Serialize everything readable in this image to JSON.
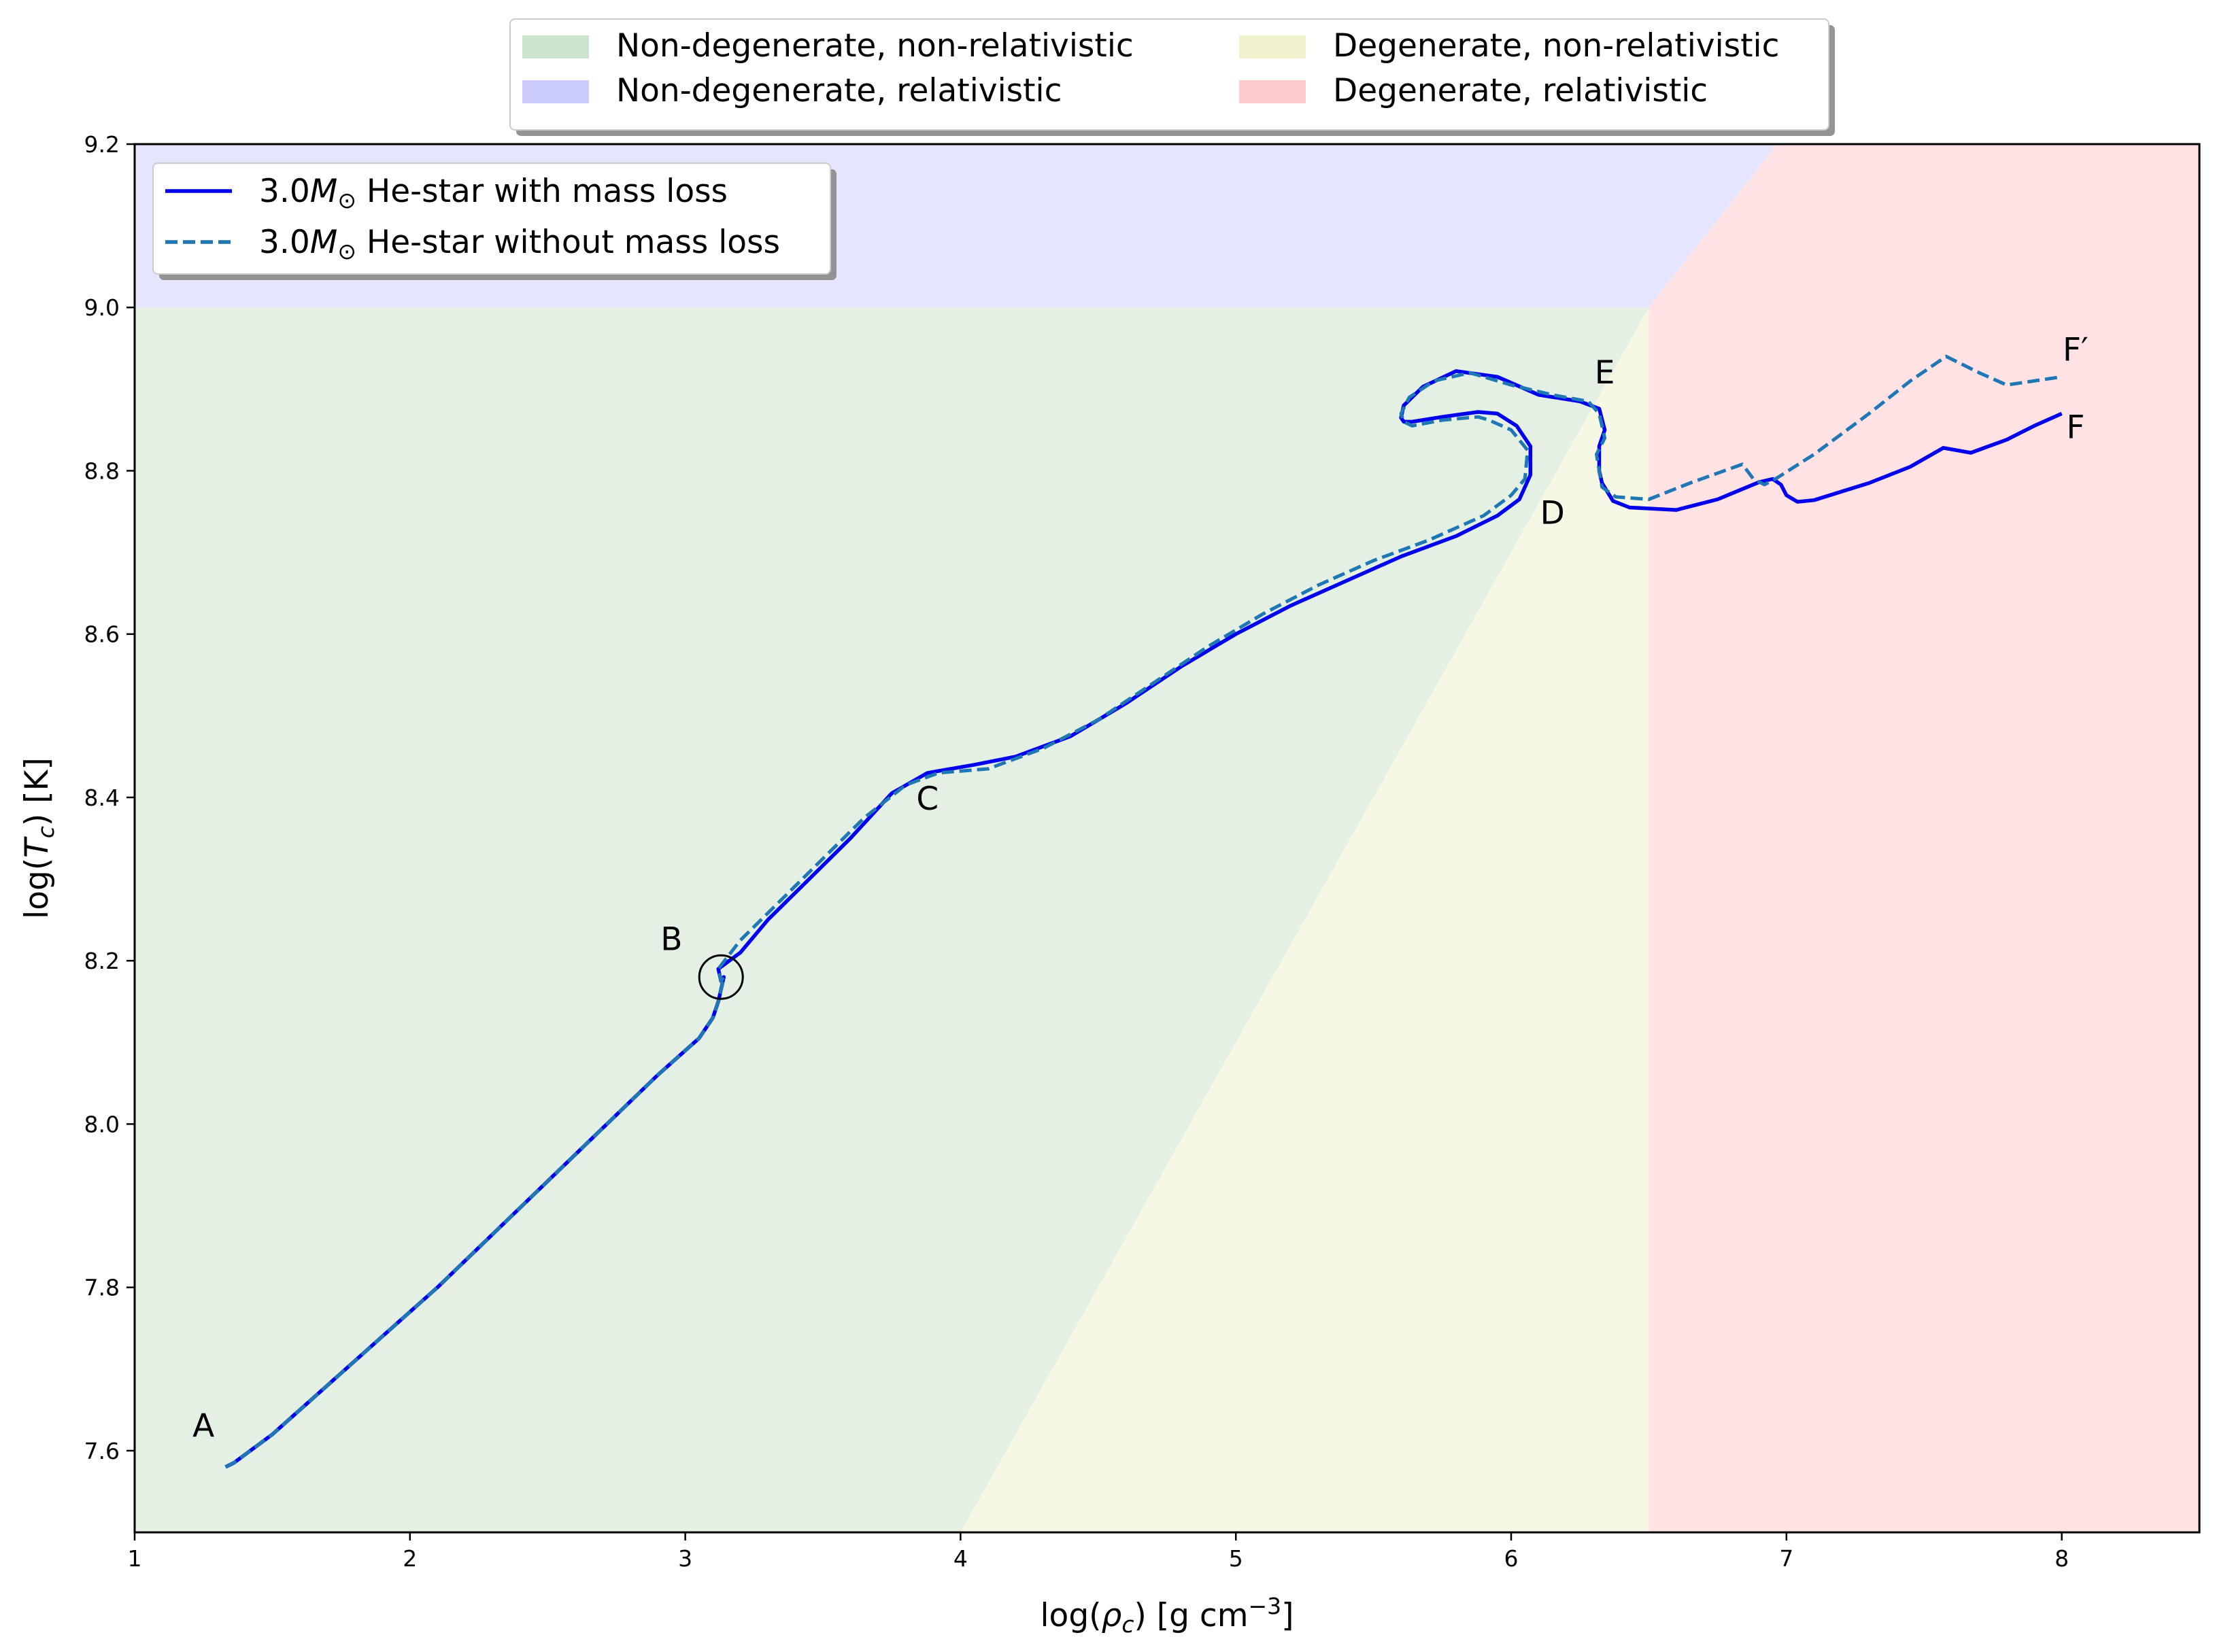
{
  "chart_data": {
    "type": "line",
    "xlabel": "log(ρc) [g cm−3]",
    "ylabel": "log(Tc) [K]",
    "xlim": [
      1,
      8.5
    ],
    "ylim": [
      7.5,
      9.2
    ],
    "x_ticks": [
      "1",
      "2",
      "3",
      "4",
      "5",
      "6",
      "7",
      "8"
    ],
    "y_ticks": [
      "7.6",
      "7.8",
      "8.0",
      "8.2",
      "8.4",
      "8.6",
      "8.8",
      "9.0",
      "9.2"
    ],
    "grid": false,
    "regions": [
      {
        "name": "Non-degenerate, non-relativistic",
        "color": "#e5f0e5",
        "legend_color": "#cde4cd",
        "polygon": [
          [
            1,
            7.5
          ],
          [
            4,
            7.5
          ],
          [
            6.5,
            9.0
          ],
          [
            1,
            9.0
          ]
        ]
      },
      {
        "name": "Non-degenerate, relativistic",
        "color": "#e5e5ff",
        "legend_color": "#cbcbfc",
        "polygon": [
          [
            1,
            9.0
          ],
          [
            6.5,
            9.0
          ],
          [
            6.9667,
            9.2
          ],
          [
            1,
            9.2
          ]
        ]
      },
      {
        "name": "Degenerate, non-relativistic",
        "color": "#f7f7e5",
        "legend_color": "#f1f1cd",
        "polygon": [
          [
            4,
            7.5
          ],
          [
            6.5,
            7.5
          ],
          [
            6.5,
            9.0
          ]
        ]
      },
      {
        "name": "Degenerate, relativistic",
        "color": "#ffe2e3",
        "legend_color": "#fdcbcc",
        "polygon": [
          [
            6.5,
            7.5
          ],
          [
            8.5,
            7.5
          ],
          [
            8.5,
            9.2
          ],
          [
            6.9667,
            9.2
          ],
          [
            6.5,
            9.0
          ]
        ]
      }
    ],
    "series": [
      {
        "name": "3.0M⊙ He-star with mass loss",
        "name_parts": {
          "prefix": "3.0",
          "symbol": "M",
          "subscript": "⊙",
          "suffix": " He-star with mass loss"
        },
        "color": "#0000ee",
        "style": "solid",
        "points": [
          [
            1.33,
            7.58
          ],
          [
            1.36,
            7.585
          ],
          [
            1.5,
            7.62
          ],
          [
            1.7,
            7.68
          ],
          [
            1.9,
            7.74
          ],
          [
            2.1,
            7.8
          ],
          [
            2.3,
            7.865
          ],
          [
            2.5,
            7.93
          ],
          [
            2.7,
            7.995
          ],
          [
            2.9,
            8.06
          ],
          [
            3.05,
            8.105
          ],
          [
            3.1,
            8.13
          ],
          [
            3.12,
            8.15
          ],
          [
            3.14,
            8.18
          ],
          [
            3.13,
            8.175
          ],
          [
            3.12,
            8.19
          ],
          [
            3.2,
            8.21
          ],
          [
            3.3,
            8.25
          ],
          [
            3.45,
            8.3
          ],
          [
            3.6,
            8.35
          ],
          [
            3.75,
            8.405
          ],
          [
            3.88,
            8.43
          ],
          [
            4.05,
            8.44
          ],
          [
            4.2,
            8.45
          ],
          [
            4.4,
            8.475
          ],
          [
            4.6,
            8.515
          ],
          [
            4.8,
            8.56
          ],
          [
            5.0,
            8.6
          ],
          [
            5.2,
            8.635
          ],
          [
            5.4,
            8.665
          ],
          [
            5.6,
            8.695
          ],
          [
            5.8,
            8.72
          ],
          [
            5.95,
            8.745
          ],
          [
            6.03,
            8.765
          ],
          [
            6.07,
            8.795
          ],
          [
            6.07,
            8.83
          ],
          [
            6.02,
            8.855
          ],
          [
            5.95,
            8.87
          ],
          [
            5.88,
            8.872
          ],
          [
            5.75,
            8.866
          ],
          [
            5.64,
            8.86
          ],
          [
            5.61,
            8.86
          ],
          [
            5.6,
            8.865
          ],
          [
            5.61,
            8.88
          ],
          [
            5.68,
            8.903
          ],
          [
            5.8,
            8.922
          ],
          [
            5.95,
            8.915
          ],
          [
            6.1,
            8.893
          ],
          [
            6.25,
            8.885
          ],
          [
            6.32,
            8.876
          ],
          [
            6.34,
            8.85
          ],
          [
            6.32,
            8.83
          ],
          [
            6.32,
            8.8
          ],
          [
            6.33,
            8.785
          ],
          [
            6.37,
            8.763
          ],
          [
            6.43,
            8.755
          ],
          [
            6.6,
            8.752
          ],
          [
            6.75,
            8.765
          ],
          [
            6.9,
            8.786
          ],
          [
            6.95,
            8.79
          ],
          [
            6.98,
            8.783
          ],
          [
            7.0,
            8.77
          ],
          [
            7.04,
            8.762
          ],
          [
            7.1,
            8.764
          ],
          [
            7.3,
            8.785
          ],
          [
            7.45,
            8.805
          ],
          [
            7.57,
            8.828
          ],
          [
            7.67,
            8.822
          ],
          [
            7.8,
            8.838
          ],
          [
            7.9,
            8.855
          ],
          [
            8.0,
            8.87
          ]
        ]
      },
      {
        "name": "3.0M⊙ He-star without mass loss",
        "name_parts": {
          "prefix": "3.0",
          "symbol": "M",
          "subscript": "⊙",
          "suffix": " He-star without mass loss"
        },
        "color": "#1f77b4",
        "style": "dashed",
        "points": [
          [
            1.33,
            7.58
          ],
          [
            1.36,
            7.585
          ],
          [
            1.5,
            7.62
          ],
          [
            1.7,
            7.68
          ],
          [
            1.9,
            7.74
          ],
          [
            2.1,
            7.8
          ],
          [
            2.3,
            7.865
          ],
          [
            2.5,
            7.93
          ],
          [
            2.7,
            7.995
          ],
          [
            2.9,
            8.06
          ],
          [
            3.05,
            8.105
          ],
          [
            3.1,
            8.13
          ],
          [
            3.12,
            8.15
          ],
          [
            3.14,
            8.18
          ],
          [
            3.13,
            8.175
          ],
          [
            3.12,
            8.19
          ],
          [
            3.2,
            8.225
          ],
          [
            3.35,
            8.275
          ],
          [
            3.5,
            8.325
          ],
          [
            3.65,
            8.375
          ],
          [
            3.8,
            8.415
          ],
          [
            3.92,
            8.43
          ],
          [
            4.1,
            8.435
          ],
          [
            4.3,
            8.46
          ],
          [
            4.5,
            8.495
          ],
          [
            4.7,
            8.54
          ],
          [
            4.9,
            8.585
          ],
          [
            5.1,
            8.625
          ],
          [
            5.3,
            8.66
          ],
          [
            5.5,
            8.69
          ],
          [
            5.7,
            8.715
          ],
          [
            5.9,
            8.745
          ],
          [
            6.0,
            8.77
          ],
          [
            6.05,
            8.79
          ],
          [
            6.06,
            8.825
          ],
          [
            6.0,
            8.85
          ],
          [
            5.92,
            8.862
          ],
          [
            5.88,
            8.866
          ],
          [
            5.75,
            8.862
          ],
          [
            5.64,
            8.855
          ],
          [
            5.61,
            8.86
          ],
          [
            5.6,
            8.87
          ],
          [
            5.63,
            8.89
          ],
          [
            5.72,
            8.91
          ],
          [
            5.85,
            8.92
          ],
          [
            6.0,
            8.905
          ],
          [
            6.15,
            8.893
          ],
          [
            6.28,
            8.885
          ],
          [
            6.32,
            8.87
          ],
          [
            6.34,
            8.84
          ],
          [
            6.31,
            8.82
          ],
          [
            6.33,
            8.78
          ],
          [
            6.38,
            8.768
          ],
          [
            6.5,
            8.765
          ],
          [
            6.65,
            8.785
          ],
          [
            6.84,
            8.808
          ],
          [
            6.88,
            8.79
          ],
          [
            6.92,
            8.783
          ],
          [
            6.96,
            8.79
          ],
          [
            7.1,
            8.82
          ],
          [
            7.3,
            8.87
          ],
          [
            7.45,
            8.91
          ],
          [
            7.58,
            8.94
          ],
          [
            7.7,
            8.92
          ],
          [
            7.8,
            8.905
          ],
          [
            8.0,
            8.915
          ]
        ]
      }
    ],
    "annotations": [
      {
        "label": "A",
        "x": 1.25,
        "y": 7.617
      },
      {
        "label": "B",
        "x": 2.95,
        "y": 8.213
      },
      {
        "label": "C",
        "x": 3.88,
        "y": 8.385
      },
      {
        "label": "D",
        "x": 6.15,
        "y": 8.735
      },
      {
        "label": "E",
        "x": 6.34,
        "y": 8.907
      },
      {
        "label": "F",
        "x": 8.05,
        "y": 8.84
      },
      {
        "label": "F′",
        "x": 8.05,
        "y": 9.26
      }
    ],
    "circle_marker": {
      "x": 3.13,
      "y": 8.18
    },
    "legends": [
      {
        "placement": "top-center-outside",
        "columns": 2
      },
      {
        "placement": "top-left-inside",
        "columns": 1
      }
    ]
  }
}
